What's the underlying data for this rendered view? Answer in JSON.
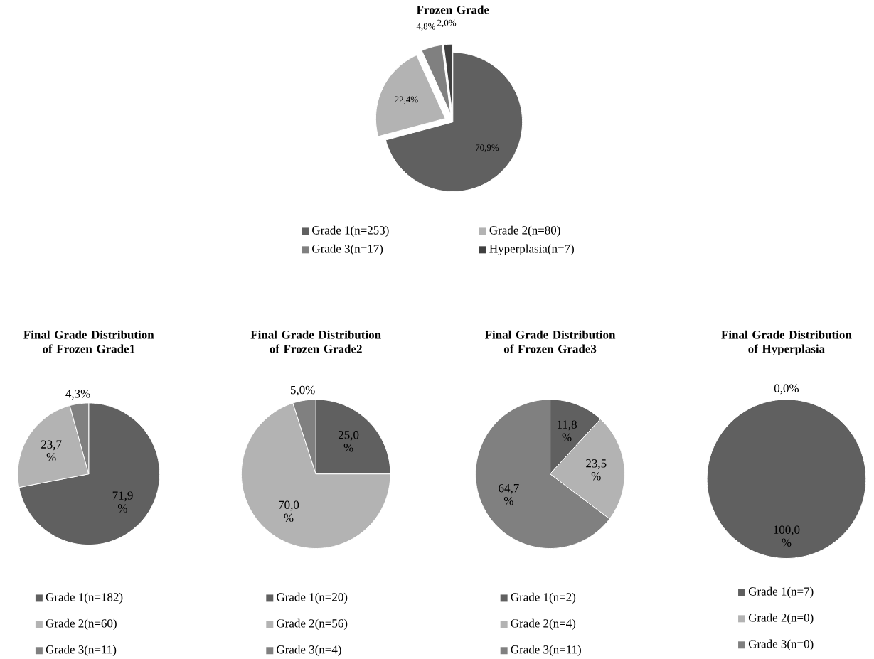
{
  "chart_data": [
    {
      "type": "pie",
      "title": "Frozen Grade",
      "categories": [
        "Grade 1(n=253)",
        "Grade 2(n=80)",
        "Grade 3(n=17)",
        "Hyperplasia(n=7)"
      ],
      "values": [
        70.9,
        22.4,
        4.8,
        2.0
      ],
      "colors": [
        "#606060",
        "#b3b3b3",
        "#808080",
        "#404040"
      ],
      "value_labels": [
        "70,9%",
        "22,4%",
        "4,8%",
        "2,0%"
      ],
      "legend": "bottom"
    },
    {
      "type": "pie",
      "title": "Final Grade Distribution of Frozen Grade1",
      "categories": [
        "Grade 1(n=182)",
        "Grade 2(n=60)",
        "Grade 3(n=11)"
      ],
      "values": [
        71.9,
        23.7,
        4.3
      ],
      "colors": [
        "#606060",
        "#b3b3b3",
        "#808080"
      ],
      "value_labels": [
        "71,9 %",
        "23,7 %",
        "4,3%"
      ],
      "legend": "bottom"
    },
    {
      "type": "pie",
      "title": "Final Grade Distribution of Frozen Grade2",
      "categories": [
        "Grade 1(n=20)",
        "Grade 2(n=56)",
        "Grade 3(n=4)"
      ],
      "values": [
        25.0,
        70.0,
        5.0
      ],
      "colors": [
        "#606060",
        "#b3b3b3",
        "#808080"
      ],
      "value_labels": [
        "25,0 %",
        "70,0 %",
        "5,0%"
      ],
      "legend": "bottom"
    },
    {
      "type": "pie",
      "title": "Final Grade Distribution of Frozen Grade3",
      "categories": [
        "Grade 1(n=2)",
        "Grade 2(n=4)",
        "Grade 3(n=11)"
      ],
      "values": [
        11.8,
        23.5,
        64.7
      ],
      "colors": [
        "#606060",
        "#b3b3b3",
        "#808080"
      ],
      "value_labels": [
        "11,8 %",
        "23,5 %",
        "64,7 %"
      ],
      "legend": "bottom"
    },
    {
      "type": "pie",
      "title": "Final Grade Distribution of Hyperplasia",
      "categories": [
        "Grade 1(n=7)",
        "Grade 2(n=0)",
        "Grade 3(n=0)"
      ],
      "values": [
        100.0,
        0.0,
        0.0
      ],
      "colors": [
        "#606060",
        "#b3b3b3",
        "#808080"
      ],
      "value_labels": [
        "100,0 %",
        null,
        "0,0%"
      ],
      "legend": "bottom"
    }
  ]
}
